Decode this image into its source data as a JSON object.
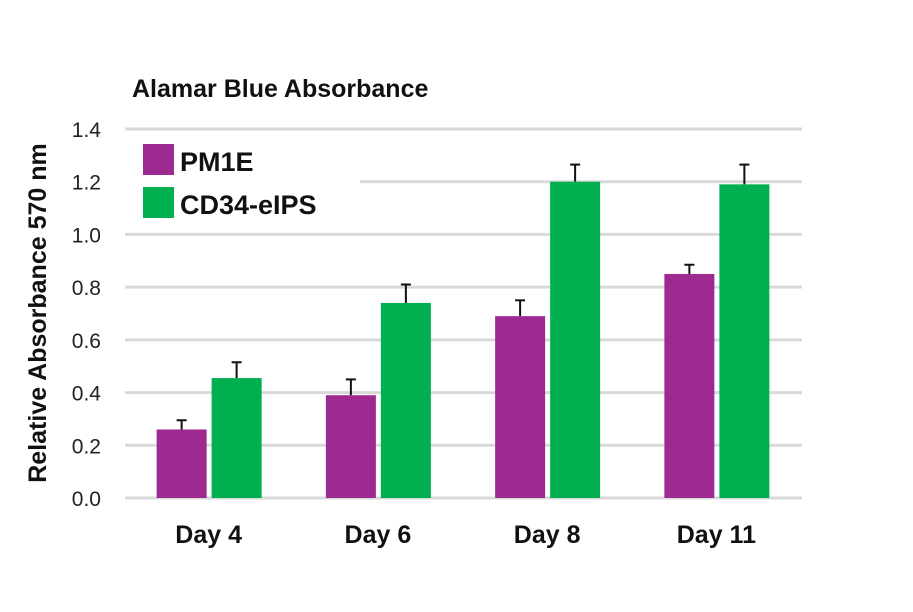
{
  "chart_data": {
    "type": "bar",
    "title": "Alamar Blue Absorbance",
    "xlabel": "",
    "ylabel": "Relative Absorbance 570 nm",
    "ylim": [
      0,
      1.4
    ],
    "yticks": [
      "0.0",
      "0.2",
      "0.4",
      "0.6",
      "0.8",
      "1.0",
      "1.2",
      "1.4"
    ],
    "grid": true,
    "legend_position": "top-left",
    "categories": [
      "Day 4",
      "Day 6",
      "Day 8",
      "Day 11"
    ],
    "series": [
      {
        "name": "PM1E",
        "color": "#9e2a91",
        "values": [
          0.26,
          0.39,
          0.69,
          0.85
        ],
        "error": [
          0.035,
          0.06,
          0.06,
          0.035
        ]
      },
      {
        "name": "CD34-eIPS",
        "color": "#00b050",
        "values": [
          0.455,
          0.74,
          1.2,
          1.19
        ],
        "error": [
          0.06,
          0.07,
          0.065,
          0.075
        ]
      }
    ]
  }
}
